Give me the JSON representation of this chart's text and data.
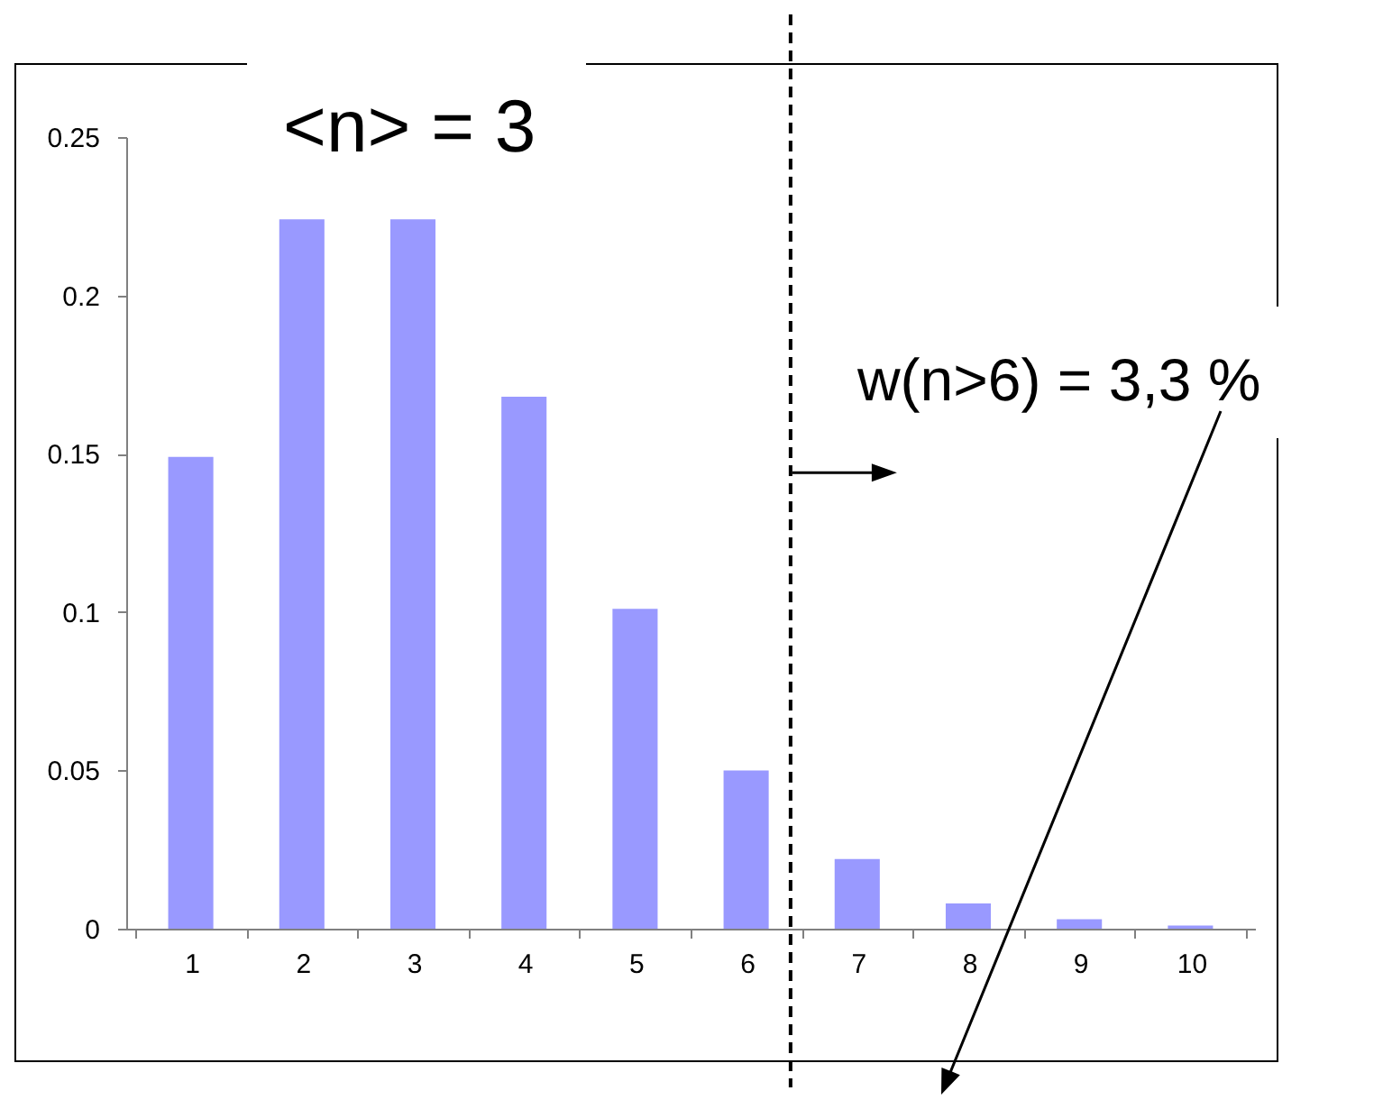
{
  "chart_data": {
    "type": "bar",
    "title": "<n> = 3",
    "x": [
      1,
      2,
      3,
      4,
      5,
      6,
      7,
      8,
      9,
      10
    ],
    "values": [
      0.149,
      0.224,
      0.224,
      0.168,
      0.101,
      0.05,
      0.022,
      0.008,
      0.003,
      0.001
    ],
    "color": "#9999ff",
    "xlim": [
      0.5,
      10.5
    ],
    "xticks": [
      {
        "value": 0.5,
        "label": null
      },
      1,
      {
        "value": 1.5,
        "label": null
      },
      2,
      {
        "value": 2.5,
        "label": null
      },
      3,
      {
        "value": 3.5,
        "label": null
      },
      4,
      {
        "value": 4.5,
        "label": null
      },
      5,
      {
        "value": 5.5,
        "label": null
      },
      6,
      {
        "value": 6.5,
        "label": null
      },
      7,
      {
        "value": 7.5,
        "label": null
      },
      8,
      {
        "value": 8.5,
        "label": null
      },
      9,
      {
        "value": 9.5,
        "label": null
      },
      10,
      {
        "value": 10.5,
        "label": null
      }
    ],
    "ylim": [
      0,
      0.25
    ],
    "yticks": [
      0,
      0.05,
      0.1,
      0.15,
      0.2,
      0.25
    ],
    "ref_lines": [
      {
        "axis": "x",
        "value": 6.4,
        "color": "#000000",
        "line_style": "dashed"
      }
    ],
    "annotations": [
      {
        "text": "w(n>6) = 3,3 %",
        "x": 6.4,
        "y": 0.144
      }
    ]
  }
}
